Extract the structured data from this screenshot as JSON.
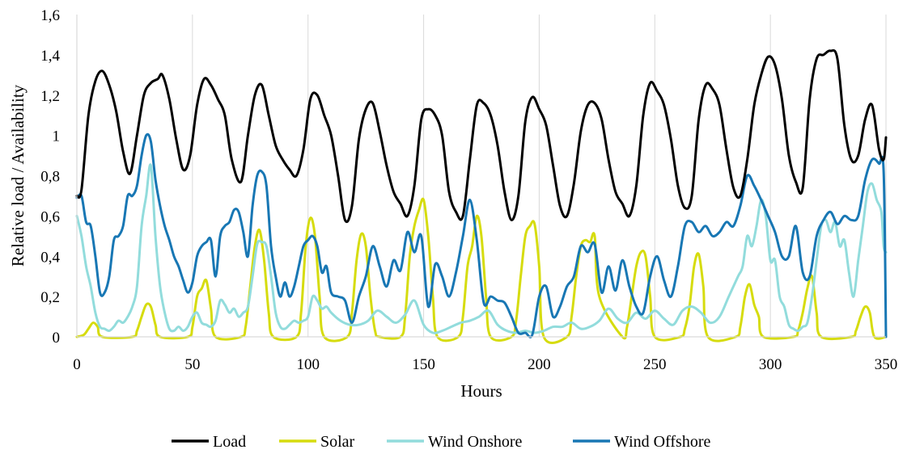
{
  "chart_data": {
    "type": "line",
    "title": "",
    "xlabel": "Hours",
    "ylabel": "Relative load / Availability",
    "xlim": [
      0,
      350
    ],
    "ylim": [
      0,
      1.6
    ],
    "x_ticks": [
      0,
      50,
      100,
      150,
      200,
      250,
      300,
      350
    ],
    "x_tick_labels": [
      "0",
      "50",
      "100",
      "150",
      "200",
      "250",
      "300",
      "350"
    ],
    "y_ticks": [
      0,
      0.2,
      0.4,
      0.6,
      0.8,
      1.0,
      1.2,
      1.4,
      1.6
    ],
    "y_tick_labels": [
      "0",
      "0,2",
      "0,4",
      "0,6",
      "0,8",
      "1",
      "1,2",
      "1,4",
      "1,6"
    ],
    "grid": "vertical gridlines only",
    "legend_position": "bottom-center",
    "series": [
      {
        "name": "Load",
        "color": "#000000",
        "x": [
          0,
          2,
          5,
          8,
          11,
          14,
          17,
          20,
          23,
          26,
          29,
          32,
          35,
          37,
          40,
          43,
          46,
          49,
          52,
          55,
          58,
          61,
          64,
          67,
          71,
          74,
          77,
          80,
          83,
          86,
          89,
          92,
          95,
          98,
          101,
          104,
          107,
          110,
          113,
          116,
          119,
          122,
          125,
          128,
          131,
          134,
          137,
          140,
          143,
          146,
          149,
          152,
          155,
          158,
          161,
          164,
          167,
          170,
          173,
          176,
          179,
          182,
          185,
          188,
          191,
          194,
          197,
          200,
          203,
          206,
          209,
          212,
          215,
          218,
          221,
          224,
          227,
          230,
          233,
          236,
          239,
          242,
          245,
          248,
          251,
          254,
          257,
          260,
          263,
          266,
          269,
          272,
          275,
          278,
          281,
          284,
          287,
          290,
          293,
          296,
          299,
          302,
          305,
          308,
          311,
          314,
          317,
          320,
          323,
          326,
          329,
          332,
          335,
          338,
          341,
          344,
          347,
          349,
          350
        ],
        "y": [
          0.7,
          0.73,
          1.1,
          1.27,
          1.32,
          1.25,
          1.12,
          0.92,
          0.81,
          1.0,
          1.2,
          1.26,
          1.28,
          1.3,
          1.18,
          0.98,
          0.83,
          0.9,
          1.15,
          1.28,
          1.25,
          1.18,
          1.1,
          0.88,
          0.77,
          1.0,
          1.2,
          1.25,
          1.1,
          0.95,
          0.88,
          0.83,
          0.8,
          0.93,
          1.18,
          1.2,
          1.1,
          1.0,
          0.8,
          0.58,
          0.65,
          0.98,
          1.13,
          1.16,
          1.02,
          0.85,
          0.72,
          0.66,
          0.6,
          0.75,
          1.08,
          1.13,
          1.1,
          1.0,
          0.72,
          0.62,
          0.6,
          0.88,
          1.15,
          1.16,
          1.1,
          0.95,
          0.72,
          0.58,
          0.7,
          1.07,
          1.19,
          1.13,
          1.05,
          0.85,
          0.65,
          0.6,
          0.76,
          1.02,
          1.15,
          1.16,
          1.08,
          0.88,
          0.72,
          0.66,
          0.6,
          0.75,
          1.1,
          1.26,
          1.22,
          1.15,
          0.98,
          0.75,
          0.64,
          0.7,
          1.08,
          1.25,
          1.23,
          1.15,
          0.93,
          0.74,
          0.7,
          0.88,
          1.15,
          1.3,
          1.39,
          1.35,
          1.18,
          0.9,
          0.77,
          0.74,
          1.18,
          1.38,
          1.4,
          1.42,
          1.38,
          1.05,
          0.88,
          0.9,
          1.08,
          1.15,
          0.93,
          0.88,
          0.99
        ]
      },
      {
        "name": "Solar",
        "color": "#d6dc0e",
        "x": [
          0,
          3,
          5,
          7,
          9,
          11,
          24,
          26,
          28,
          30,
          32,
          34,
          36,
          48,
          50,
          52,
          54,
          56,
          58,
          60,
          71,
          73,
          75,
          77,
          79,
          81,
          83,
          85,
          95,
          97,
          99,
          101,
          103,
          105,
          107,
          117,
          119,
          121,
          123,
          125,
          127,
          129,
          131,
          140,
          142,
          144,
          146,
          148,
          150,
          152,
          154,
          156,
          165,
          167,
          169,
          171,
          173,
          175,
          177,
          179,
          188,
          190,
          192,
          194,
          196,
          198,
          200,
          202,
          212,
          214,
          216,
          218,
          220,
          222,
          224,
          226,
          236,
          238,
          240,
          242,
          244,
          246,
          248,
          250,
          261,
          263,
          265,
          267,
          269,
          271,
          273,
          285,
          287,
          289,
          291,
          293,
          295,
          297,
          310,
          312,
          314,
          316,
          318,
          320,
          322,
          335,
          337,
          339,
          341,
          343,
          345,
          350
        ],
        "y": [
          0,
          0.01,
          0.04,
          0.07,
          0.05,
          0,
          0,
          0.03,
          0.1,
          0.16,
          0.15,
          0.06,
          0,
          0,
          0.05,
          0.2,
          0.24,
          0.28,
          0.14,
          0,
          0,
          0.05,
          0.25,
          0.45,
          0.53,
          0.38,
          0.12,
          0,
          0,
          0.12,
          0.45,
          0.59,
          0.5,
          0.2,
          0,
          0,
          0.12,
          0.38,
          0.51,
          0.45,
          0.2,
          0.03,
          0,
          0,
          0.1,
          0.4,
          0.55,
          0.63,
          0.68,
          0.5,
          0.2,
          0,
          0,
          0.1,
          0.35,
          0.45,
          0.6,
          0.5,
          0.2,
          0,
          0,
          0.08,
          0.3,
          0.5,
          0.55,
          0.56,
          0.35,
          0,
          0,
          0.1,
          0.3,
          0.45,
          0.48,
          0.47,
          0.5,
          0.2,
          0,
          0.05,
          0.2,
          0.35,
          0.42,
          0.4,
          0.2,
          0,
          0,
          0.04,
          0.15,
          0.35,
          0.41,
          0.25,
          0,
          0,
          0.05,
          0.2,
          0.26,
          0.16,
          0.1,
          0,
          0,
          0.03,
          0.12,
          0.24,
          0.3,
          0.12,
          0,
          0,
          0.03,
          0.1,
          0.15,
          0.12,
          0,
          0
        ]
      },
      {
        "name": "Wind Onshore",
        "color": "#92dcdc",
        "x": [
          0,
          2,
          4,
          6,
          8,
          10,
          12,
          14,
          16,
          18,
          20,
          22,
          24,
          26,
          28,
          30,
          32,
          34,
          36,
          38,
          40,
          42,
          44,
          46,
          48,
          50,
          52,
          54,
          56,
          58,
          60,
          62,
          64,
          66,
          68,
          70,
          72,
          74,
          76,
          78,
          80,
          82,
          84,
          86,
          88,
          90,
          92,
          94,
          96,
          98,
          100,
          102,
          104,
          106,
          108,
          110,
          114,
          118,
          122,
          126,
          130,
          134,
          138,
          142,
          146,
          150,
          154,
          158,
          162,
          166,
          170,
          174,
          178,
          182,
          186,
          190,
          194,
          198,
          202,
          206,
          210,
          214,
          218,
          222,
          226,
          230,
          234,
          238,
          242,
          246,
          250,
          254,
          258,
          262,
          266,
          270,
          274,
          278,
          282,
          286,
          288,
          290,
          292,
          294,
          296,
          298,
          300,
          302,
          304,
          306,
          308,
          310,
          312,
          314,
          316,
          318,
          320,
          322,
          324,
          326,
          328,
          330,
          332,
          334,
          336,
          338,
          340,
          342,
          344,
          346,
          348,
          349,
          350
        ],
        "y": [
          0.6,
          0.5,
          0.35,
          0.25,
          0.12,
          0.05,
          0.04,
          0.03,
          0.05,
          0.08,
          0.07,
          0.1,
          0.15,
          0.25,
          0.55,
          0.7,
          0.85,
          0.5,
          0.25,
          0.12,
          0.04,
          0.03,
          0.05,
          0.03,
          0.05,
          0.1,
          0.12,
          0.07,
          0.06,
          0.05,
          0.08,
          0.18,
          0.16,
          0.12,
          0.14,
          0.1,
          0.12,
          0.15,
          0.3,
          0.46,
          0.47,
          0.45,
          0.3,
          0.12,
          0.05,
          0.04,
          0.06,
          0.08,
          0.07,
          0.08,
          0.1,
          0.2,
          0.18,
          0.14,
          0.15,
          0.12,
          0.08,
          0.06,
          0.06,
          0.08,
          0.13,
          0.1,
          0.07,
          0.11,
          0.18,
          0.06,
          0.02,
          0.03,
          0.05,
          0.07,
          0.08,
          0.1,
          0.13,
          0.06,
          0.03,
          0.02,
          0.03,
          0.02,
          0.03,
          0.05,
          0.05,
          0.07,
          0.04,
          0.05,
          0.08,
          0.14,
          0.09,
          0.07,
          0.12,
          0.09,
          0.13,
          0.09,
          0.06,
          0.13,
          0.15,
          0.12,
          0.07,
          0.1,
          0.2,
          0.3,
          0.35,
          0.5,
          0.45,
          0.55,
          0.68,
          0.6,
          0.38,
          0.38,
          0.2,
          0.15,
          0.06,
          0.04,
          0.03,
          0.05,
          0.07,
          0.2,
          0.38,
          0.55,
          0.58,
          0.52,
          0.57,
          0.45,
          0.48,
          0.32,
          0.2,
          0.38,
          0.55,
          0.72,
          0.76,
          0.68,
          0.62,
          0.45,
          0.42
        ]
      },
      {
        "name": "Wind Offshore",
        "color": "#1877b4",
        "x": [
          0,
          2,
          4,
          6,
          8,
          10,
          12,
          14,
          16,
          18,
          20,
          22,
          24,
          26,
          28,
          30,
          32,
          34,
          36,
          38,
          40,
          42,
          44,
          46,
          48,
          50,
          52,
          54,
          56,
          58,
          60,
          62,
          64,
          66,
          68,
          70,
          72,
          74,
          76,
          78,
          80,
          82,
          84,
          86,
          88,
          90,
          92,
          94,
          96,
          98,
          100,
          102,
          104,
          106,
          108,
          110,
          113,
          116,
          119,
          122,
          125,
          128,
          131,
          134,
          137,
          140,
          143,
          146,
          149,
          152,
          155,
          158,
          161,
          164,
          167,
          170,
          173,
          176,
          179,
          182,
          185,
          188,
          191,
          194,
          197,
          200,
          203,
          206,
          209,
          212,
          215,
          218,
          221,
          224,
          227,
          230,
          233,
          236,
          239,
          242,
          245,
          248,
          251,
          254,
          257,
          260,
          263,
          266,
          269,
          272,
          275,
          278,
          281,
          284,
          287,
          290,
          293,
          296,
          299,
          302,
          305,
          308,
          311,
          314,
          317,
          320,
          323,
          326,
          329,
          332,
          335,
          338,
          341,
          344,
          347,
          349,
          350
        ],
        "y": [
          0.69,
          0.7,
          0.57,
          0.55,
          0.4,
          0.22,
          0.22,
          0.3,
          0.48,
          0.5,
          0.55,
          0.7,
          0.7,
          0.75,
          0.9,
          1.0,
          0.97,
          0.78,
          0.65,
          0.55,
          0.48,
          0.4,
          0.35,
          0.28,
          0.22,
          0.27,
          0.4,
          0.45,
          0.47,
          0.48,
          0.3,
          0.5,
          0.55,
          0.57,
          0.63,
          0.62,
          0.52,
          0.4,
          0.65,
          0.8,
          0.82,
          0.75,
          0.45,
          0.3,
          0.2,
          0.27,
          0.2,
          0.25,
          0.35,
          0.45,
          0.48,
          0.5,
          0.45,
          0.32,
          0.35,
          0.22,
          0.2,
          0.18,
          0.07,
          0.2,
          0.3,
          0.45,
          0.35,
          0.25,
          0.38,
          0.33,
          0.52,
          0.42,
          0.5,
          0.15,
          0.36,
          0.3,
          0.2,
          0.32,
          0.5,
          0.68,
          0.48,
          0.17,
          0.2,
          0.18,
          0.17,
          0.1,
          0.02,
          0.02,
          0.01,
          0.2,
          0.25,
          0.1,
          0.15,
          0.25,
          0.3,
          0.45,
          0.42,
          0.46,
          0.22,
          0.35,
          0.23,
          0.38,
          0.25,
          0.15,
          0.12,
          0.3,
          0.4,
          0.28,
          0.2,
          0.35,
          0.55,
          0.57,
          0.52,
          0.55,
          0.5,
          0.52,
          0.57,
          0.55,
          0.65,
          0.8,
          0.75,
          0.68,
          0.6,
          0.52,
          0.4,
          0.4,
          0.55,
          0.32,
          0.3,
          0.5,
          0.58,
          0.62,
          0.56,
          0.6,
          0.58,
          0.6,
          0.78,
          0.88,
          0.86,
          0.82,
          0.0
        ]
      }
    ]
  }
}
